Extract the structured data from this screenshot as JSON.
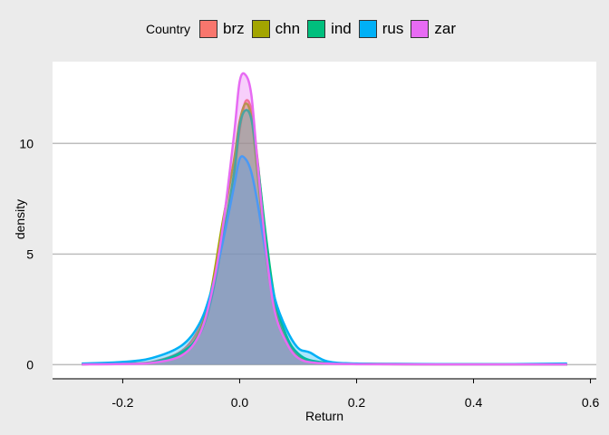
{
  "chart_data": {
    "type": "area",
    "title": "",
    "xlabel": "Return",
    "ylabel": "density",
    "xlim": [
      -0.32,
      0.61
    ],
    "ylim": [
      -0.6,
      13.7
    ],
    "x_ticks": [
      "-0.2",
      "0.0",
      "0.2",
      "0.4",
      "0.6"
    ],
    "x_tick_values": [
      -0.2,
      0.0,
      0.2,
      0.4,
      0.6
    ],
    "y_ticks": [
      "0",
      "5",
      "10"
    ],
    "y_tick_values": [
      0,
      5,
      10
    ],
    "grid": "horizontal-major",
    "legend_position": "top",
    "legend_title": "Country",
    "series": [
      {
        "name": "brz",
        "color": "#F8766D",
        "points": [
          [
            -0.27,
            0.02
          ],
          [
            -0.2,
            0.05
          ],
          [
            -0.15,
            0.12
          ],
          [
            -0.1,
            0.6
          ],
          [
            -0.07,
            1.6
          ],
          [
            -0.05,
            3.0
          ],
          [
            -0.03,
            5.6
          ],
          [
            -0.01,
            8.5
          ],
          [
            0.0,
            10.6
          ],
          [
            0.01,
            11.9
          ],
          [
            0.02,
            11.5
          ],
          [
            0.03,
            9.4
          ],
          [
            0.045,
            5.6
          ],
          [
            0.06,
            2.8
          ],
          [
            0.08,
            1.2
          ],
          [
            0.1,
            0.4
          ],
          [
            0.13,
            0.12
          ],
          [
            0.2,
            0.04
          ],
          [
            0.35,
            0.02
          ],
          [
            0.56,
            0.01
          ]
        ]
      },
      {
        "name": "chn",
        "color": "#A3A500",
        "points": [
          [
            -0.27,
            0.02
          ],
          [
            -0.2,
            0.05
          ],
          [
            -0.15,
            0.1
          ],
          [
            -0.1,
            0.5
          ],
          [
            -0.07,
            1.4
          ],
          [
            -0.05,
            3.2
          ],
          [
            -0.03,
            6.3
          ],
          [
            -0.01,
            9.2
          ],
          [
            0.0,
            11.0
          ],
          [
            0.01,
            11.8
          ],
          [
            0.02,
            11.2
          ],
          [
            0.03,
            8.8
          ],
          [
            0.045,
            5.0
          ],
          [
            0.06,
            2.5
          ],
          [
            0.08,
            1.0
          ],
          [
            0.1,
            0.35
          ],
          [
            0.13,
            0.1
          ],
          [
            0.2,
            0.03
          ],
          [
            0.35,
            0.01
          ],
          [
            0.56,
            0.01
          ]
        ]
      },
      {
        "name": "ind",
        "color": "#00BF7D",
        "points": [
          [
            -0.27,
            0.02
          ],
          [
            -0.2,
            0.05
          ],
          [
            -0.15,
            0.1
          ],
          [
            -0.1,
            0.55
          ],
          [
            -0.07,
            1.3
          ],
          [
            -0.05,
            2.8
          ],
          [
            -0.03,
            5.5
          ],
          [
            -0.01,
            8.6
          ],
          [
            0.0,
            10.8
          ],
          [
            0.01,
            11.5
          ],
          [
            0.02,
            11.1
          ],
          [
            0.03,
            9.3
          ],
          [
            0.045,
            5.8
          ],
          [
            0.06,
            3.0
          ],
          [
            0.08,
            1.3
          ],
          [
            0.1,
            0.5
          ],
          [
            0.13,
            0.15
          ],
          [
            0.2,
            0.04
          ],
          [
            0.35,
            0.02
          ],
          [
            0.56,
            0.01
          ]
        ]
      },
      {
        "name": "rus",
        "color": "#00B0F6",
        "points": [
          [
            -0.27,
            0.05
          ],
          [
            -0.2,
            0.12
          ],
          [
            -0.15,
            0.3
          ],
          [
            -0.1,
            0.85
          ],
          [
            -0.07,
            1.8
          ],
          [
            -0.05,
            3.2
          ],
          [
            -0.03,
            5.4
          ],
          [
            -0.01,
            8.0
          ],
          [
            0.0,
            9.3
          ],
          [
            0.01,
            9.3
          ],
          [
            0.02,
            8.7
          ],
          [
            0.03,
            7.4
          ],
          [
            0.045,
            5.0
          ],
          [
            0.06,
            3.0
          ],
          [
            0.08,
            1.6
          ],
          [
            0.1,
            0.75
          ],
          [
            0.12,
            0.55
          ],
          [
            0.15,
            0.15
          ],
          [
            0.2,
            0.05
          ],
          [
            0.3,
            0.03
          ],
          [
            0.45,
            0.02
          ],
          [
            0.56,
            0.05
          ]
        ]
      },
      {
        "name": "zar",
        "color": "#E76BF3",
        "points": [
          [
            -0.27,
            0.01
          ],
          [
            -0.2,
            0.03
          ],
          [
            -0.15,
            0.08
          ],
          [
            -0.1,
            0.4
          ],
          [
            -0.07,
            1.3
          ],
          [
            -0.05,
            3.0
          ],
          [
            -0.03,
            6.0
          ],
          [
            -0.01,
            10.3
          ],
          [
            0.0,
            12.8
          ],
          [
            0.01,
            13.1
          ],
          [
            0.02,
            12.2
          ],
          [
            0.03,
            9.3
          ],
          [
            0.045,
            5.2
          ],
          [
            0.06,
            2.4
          ],
          [
            0.08,
            1.0
          ],
          [
            0.1,
            0.3
          ],
          [
            0.13,
            0.08
          ],
          [
            0.2,
            0.02
          ],
          [
            0.35,
            0.01
          ],
          [
            0.56,
            0.01
          ]
        ]
      }
    ]
  }
}
